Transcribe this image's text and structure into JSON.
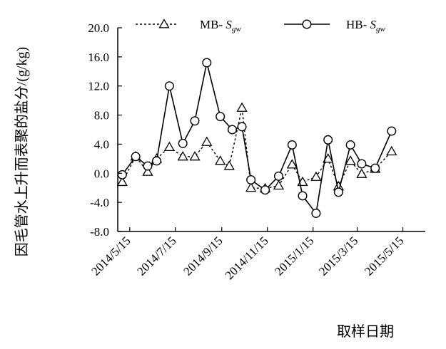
{
  "chart_data": {
    "type": "line",
    "title": "",
    "xlabel": "取样日期",
    "ylabel": "因毛管水上升而表聚的盐分/(g/kg)",
    "ylim": [
      -8.0,
      20.0
    ],
    "yticks": [
      "20.0",
      "16.0",
      "12.0",
      "8.0",
      "4.0",
      "0.0",
      "-4.0",
      "-8.0"
    ],
    "xlim": [
      "2014-04-29",
      "2015-06-14"
    ],
    "xticks": [
      "2014/5/15",
      "2014/7/15",
      "2014/9/15",
      "2014/11/15",
      "2015/1/15",
      "2015/3/15",
      "2015/5/15"
    ],
    "legend_position": "top",
    "grid": false,
    "series": [
      {
        "name": "MB-",
        "name_sub": "S",
        "name_subscript": "gw",
        "style": "dashed",
        "marker": "triangle",
        "points": [
          {
            "x": "2014-05-05",
            "y": -1.2
          },
          {
            "x": "2014-05-23",
            "y": 2.3
          },
          {
            "x": "2014-06-08",
            "y": 0.2
          },
          {
            "x": "2014-06-20",
            "y": 2.0
          },
          {
            "x": "2014-07-07",
            "y": 3.6
          },
          {
            "x": "2014-07-25",
            "y": 2.3
          },
          {
            "x": "2014-08-10",
            "y": 2.3
          },
          {
            "x": "2014-08-26",
            "y": 4.3
          },
          {
            "x": "2014-09-13",
            "y": 1.7
          },
          {
            "x": "2014-09-25",
            "y": 1.0
          },
          {
            "x": "2014-10-12",
            "y": 9.0
          },
          {
            "x": "2014-10-24",
            "y": -2.0
          },
          {
            "x": "2014-11-12",
            "y": -2.1
          },
          {
            "x": "2014-11-30",
            "y": -1.7
          },
          {
            "x": "2014-12-18",
            "y": 1.2
          },
          {
            "x": "2015-01-01",
            "y": -1.2
          },
          {
            "x": "2015-01-19",
            "y": -0.5
          },
          {
            "x": "2015-02-04",
            "y": 2.0
          },
          {
            "x": "2015-02-18",
            "y": -1.8
          },
          {
            "x": "2015-03-06",
            "y": 1.7
          },
          {
            "x": "2015-03-21",
            "y": -0.1
          },
          {
            "x": "2015-04-08",
            "y": 0.6
          },
          {
            "x": "2015-04-30",
            "y": 3.0
          }
        ]
      },
      {
        "name": "HB-",
        "name_sub": "S",
        "name_subscript": "gw",
        "style": "solid",
        "marker": "circle",
        "points": [
          {
            "x": "2014-05-05",
            "y": -0.2
          },
          {
            "x": "2014-05-23",
            "y": 2.3
          },
          {
            "x": "2014-06-08",
            "y": 1.0
          },
          {
            "x": "2014-06-20",
            "y": 1.7
          },
          {
            "x": "2014-07-07",
            "y": 12.0
          },
          {
            "x": "2014-07-25",
            "y": 4.1
          },
          {
            "x": "2014-08-10",
            "y": 7.2
          },
          {
            "x": "2014-08-26",
            "y": 15.2
          },
          {
            "x": "2014-09-13",
            "y": 7.8
          },
          {
            "x": "2014-09-29",
            "y": 6.0
          },
          {
            "x": "2014-10-12",
            "y": 6.4
          },
          {
            "x": "2014-10-24",
            "y": -0.9
          },
          {
            "x": "2014-11-12",
            "y": -2.3
          },
          {
            "x": "2014-11-30",
            "y": -0.4
          },
          {
            "x": "2014-12-18",
            "y": 3.9
          },
          {
            "x": "2015-01-01",
            "y": -3.1
          },
          {
            "x": "2015-01-19",
            "y": -5.5
          },
          {
            "x": "2015-02-04",
            "y": 4.6
          },
          {
            "x": "2015-02-18",
            "y": -2.6
          },
          {
            "x": "2015-03-06",
            "y": 3.9
          },
          {
            "x": "2015-03-21",
            "y": 1.3
          },
          {
            "x": "2015-04-08",
            "y": 0.7
          },
          {
            "x": "2015-04-30",
            "y": 5.8
          }
        ]
      }
    ]
  }
}
